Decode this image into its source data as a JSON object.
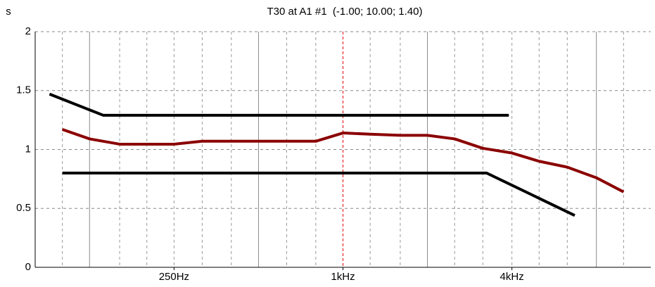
{
  "chart_data": {
    "type": "line",
    "title": "T30 at A1 #1  (-1.00; 10.00; 1.40)",
    "y_label": "s",
    "xscale": "log",
    "xlim": [
      80,
      12500
    ],
    "xticks": [
      {
        "value": 250,
        "label": "250Hz"
      },
      {
        "value": 1000,
        "label": "1kHz"
      },
      {
        "value": 4000,
        "label": "4kHz"
      }
    ],
    "x_major_grid": [
      125,
      500,
      2000,
      8000
    ],
    "x_minor_grid": [
      100,
      160,
      200,
      250,
      315,
      400,
      630,
      800,
      1250,
      1600,
      2500,
      3150,
      4000,
      5000,
      6300,
      10000
    ],
    "x_marker": 1000,
    "x_marker_color": "#e00000",
    "ylim": [
      0,
      2
    ],
    "yticks": [
      0,
      0.5,
      1,
      1.5,
      2
    ],
    "grid": true,
    "series": [
      {
        "color": "#000000",
        "x": [
          90,
          140,
          3900
        ],
        "values": [
          1.47,
          1.29,
          1.29
        ]
      },
      {
        "color": "#000000",
        "x": [
          100,
          3250,
          6700
        ],
        "values": [
          0.8,
          0.8,
          0.44
        ]
      },
      {
        "color": "#8b0000",
        "x": [
          100,
          125,
          160,
          200,
          250,
          315,
          400,
          500,
          630,
          800,
          1000,
          1250,
          1600,
          2000,
          2500,
          3150,
          4000,
          5000,
          6300,
          8000,
          10000
        ],
        "values": [
          1.17,
          1.09,
          1.045,
          1.045,
          1.045,
          1.07,
          1.07,
          1.07,
          1.07,
          1.07,
          1.14,
          1.13,
          1.12,
          1.12,
          1.09,
          1.01,
          0.97,
          0.9,
          0.85,
          0.76,
          0.64
        ]
      }
    ]
  }
}
